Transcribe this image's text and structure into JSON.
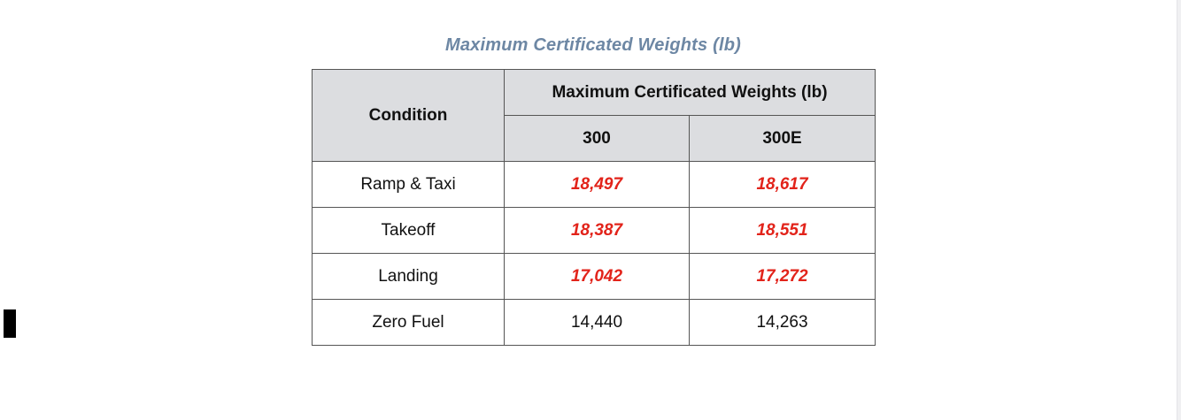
{
  "title": "Maximum Certificated Weights (lb)",
  "header": {
    "condition": "Condition",
    "group": "Maximum Certificated Weights (lb)",
    "col_300": "300",
    "col_300e": "300E"
  },
  "rows": [
    {
      "condition": "Ramp & Taxi",
      "v300": "18,497",
      "v300e": "18,617",
      "highlight": true
    },
    {
      "condition": "Takeoff",
      "v300": "18,387",
      "v300e": "18,551",
      "highlight": true
    },
    {
      "condition": "Landing",
      "v300": "17,042",
      "v300e": "17,272",
      "highlight": true
    },
    {
      "condition": "Zero Fuel",
      "v300": "14,440",
      "v300e": "14,263",
      "highlight": false
    }
  ],
  "colors": {
    "title": "#6d87a4",
    "highlight": "#e2231a",
    "header_bg": "#dcdde0"
  }
}
